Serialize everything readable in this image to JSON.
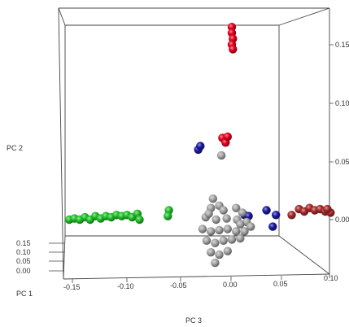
{
  "chart_data": {
    "type": "scatter",
    "title": "",
    "axes": {
      "pc1": {
        "label": "PC 1",
        "ticks": [
          "0.00",
          "0.05",
          "0.10",
          "0.15"
        ]
      },
      "pc2": {
        "label": "PC 2",
        "ticks": [
          "0.00",
          "0.05",
          "0.10",
          "0.15"
        ]
      },
      "pc3": {
        "label": "PC 3",
        "ticks": [
          "-0.15",
          "-0.10",
          "-0.05",
          "0.00",
          "0.05",
          "0.10"
        ]
      }
    },
    "grid": false,
    "legend": "none",
    "series": [
      {
        "color": "#e8001c",
        "points": [
          {
            "pc3": 0.0,
            "pc2": 0.165
          },
          {
            "pc3": 0.0,
            "pc2": 0.16
          },
          {
            "pc3": 0.001,
            "pc2": 0.155
          },
          {
            "pc3": 0.0,
            "pc2": 0.15
          },
          {
            "pc3": 0.001,
            "pc2": 0.146
          },
          {
            "pc3": -0.009,
            "pc2": 0.07
          },
          {
            "pc3": -0.006,
            "pc2": 0.066
          },
          {
            "pc3": -0.004,
            "pc2": 0.071
          }
        ]
      },
      {
        "color": "#22c22a",
        "points": [
          {
            "pc3": -0.155,
            "pc2": 0.0
          },
          {
            "pc3": -0.15,
            "pc2": 0.001
          },
          {
            "pc3": -0.145,
            "pc2": 0.0
          },
          {
            "pc3": -0.14,
            "pc2": 0.002
          },
          {
            "pc3": -0.135,
            "pc2": 0.0
          },
          {
            "pc3": -0.13,
            "pc2": 0.003
          },
          {
            "pc3": -0.125,
            "pc2": 0.001
          },
          {
            "pc3": -0.12,
            "pc2": 0.003
          },
          {
            "pc3": -0.115,
            "pc2": 0.002
          },
          {
            "pc3": -0.11,
            "pc2": 0.004
          },
          {
            "pc3": -0.105,
            "pc2": 0.003
          },
          {
            "pc3": -0.1,
            "pc2": 0.004
          },
          {
            "pc3": -0.095,
            "pc2": 0.002
          },
          {
            "pc3": -0.09,
            "pc2": 0.005
          },
          {
            "pc3": -0.088,
            "pc2": 0.0
          },
          {
            "pc3": -0.06,
            "pc2": 0.008
          },
          {
            "pc3": -0.061,
            "pc2": 0.003
          }
        ]
      },
      {
        "color": "#1a1aa6",
        "points": [
          {
            "pc3": -0.032,
            "pc2": 0.06
          },
          {
            "pc3": -0.03,
            "pc2": 0.063
          },
          {
            "pc3": 0.012,
            "pc2": 0.004
          },
          {
            "pc3": 0.016,
            "pc2": 0.003
          },
          {
            "pc3": 0.033,
            "pc2": 0.008
          },
          {
            "pc3": 0.042,
            "pc2": 0.004
          },
          {
            "pc3": 0.039,
            "pc2": -0.006
          }
        ]
      },
      {
        "color": "#a82c2c",
        "points": [
          {
            "pc3": 0.057,
            "pc2": 0.004
          },
          {
            "pc3": 0.064,
            "pc2": 0.009
          },
          {
            "pc3": 0.069,
            "pc2": 0.007
          },
          {
            "pc3": 0.074,
            "pc2": 0.01
          },
          {
            "pc3": 0.079,
            "pc2": 0.008
          },
          {
            "pc3": 0.084,
            "pc2": 0.009
          },
          {
            "pc3": 0.089,
            "pc2": 0.007
          },
          {
            "pc3": 0.094,
            "pc2": 0.006
          },
          {
            "pc3": 0.091,
            "pc2": 0.009
          }
        ]
      },
      {
        "color": "#a9a9a9",
        "points": [
          {
            "pc3": -0.01,
            "pc2": 0.055
          },
          {
            "pc3": -0.018,
            "pc2": 0.018
          },
          {
            "pc3": -0.012,
            "pc2": 0.012
          },
          {
            "pc3": -0.02,
            "pc2": 0.01
          },
          {
            "pc3": -0.008,
            "pc2": 0.008
          },
          {
            "pc3": 0.004,
            "pc2": 0.01
          },
          {
            "pc3": 0.01,
            "pc2": 0.006
          },
          {
            "pc3": -0.025,
            "pc2": 0.002
          },
          {
            "pc3": -0.015,
            "pc2": 0.0
          },
          {
            "pc3": -0.005,
            "pc2": 0.001
          },
          {
            "pc3": 0.005,
            "pc2": 0.0
          },
          {
            "pc3": 0.014,
            "pc2": -0.002
          },
          {
            "pc3": -0.028,
            "pc2": -0.008
          },
          {
            "pc3": -0.02,
            "pc2": -0.01
          },
          {
            "pc3": -0.012,
            "pc2": -0.009
          },
          {
            "pc3": -0.004,
            "pc2": -0.008
          },
          {
            "pc3": 0.004,
            "pc2": -0.01
          },
          {
            "pc3": 0.012,
            "pc2": -0.01
          },
          {
            "pc3": 0.018,
            "pc2": -0.006
          },
          {
            "pc3": -0.024,
            "pc2": -0.018
          },
          {
            "pc3": -0.016,
            "pc2": -0.02
          },
          {
            "pc3": -0.008,
            "pc2": -0.018
          },
          {
            "pc3": 0.0,
            "pc2": -0.017
          },
          {
            "pc3": 0.008,
            "pc2": -0.016
          },
          {
            "pc3": -0.02,
            "pc2": -0.028
          },
          {
            "pc3": -0.012,
            "pc2": -0.03
          },
          {
            "pc3": -0.004,
            "pc2": -0.027
          },
          {
            "pc3": -0.016,
            "pc2": -0.037
          },
          {
            "pc3": -0.022,
            "pc2": 0.005
          },
          {
            "pc3": 0.008,
            "pc2": -0.004
          }
        ]
      }
    ]
  }
}
